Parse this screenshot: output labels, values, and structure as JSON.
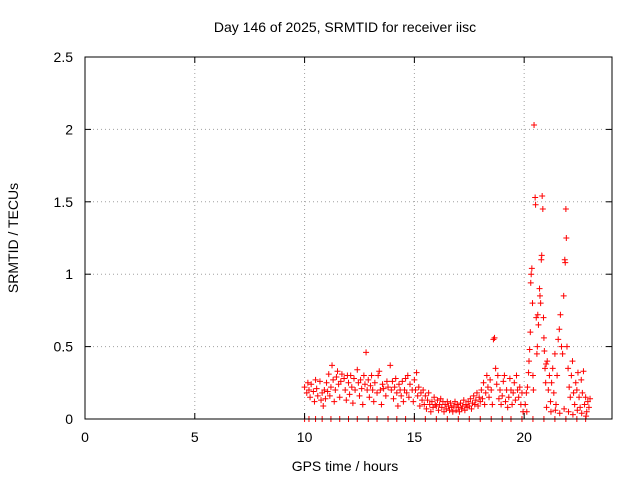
{
  "chart_data": {
    "type": "scatter",
    "title": "Day 146 of 2025, SRMTID for receiver iisc",
    "xlabel": "GPS time / hours",
    "ylabel": "SRMTID / TECUs",
    "xlim": [
      0,
      24
    ],
    "ylim": [
      0,
      2.5
    ],
    "x_ticks": [
      0,
      5,
      10,
      15,
      20
    ],
    "x_tick_labels": [
      "0",
      "5",
      "10",
      "15",
      "20"
    ],
    "y_ticks": [
      0,
      0.5,
      1,
      1.5,
      2,
      2.5
    ],
    "y_tick_labels": [
      "0",
      "0.5",
      "1",
      "1.5",
      "2",
      "2.5"
    ],
    "grid": true,
    "marker": "+",
    "colors": {
      "points": "#ff0000",
      "grid": "#a0a0a0",
      "axes": "#000000"
    },
    "series": [
      {
        "name": "SRMTID",
        "points": [
          [
            10.0,
            0.0
          ],
          [
            10.2,
            0.0
          ],
          [
            10.5,
            0.0
          ],
          [
            10.8,
            0.0
          ],
          [
            11.2,
            0.0
          ],
          [
            11.6,
            0.0
          ],
          [
            12.0,
            0.0
          ],
          [
            12.4,
            0.0
          ],
          [
            12.9,
            0.0
          ],
          [
            13.3,
            0.0
          ],
          [
            13.8,
            0.0
          ],
          [
            14.2,
            0.0
          ],
          [
            14.6,
            0.0
          ],
          [
            15.0,
            0.0
          ],
          [
            15.5,
            0.0
          ],
          [
            16.0,
            0.0
          ],
          [
            16.5,
            0.0
          ],
          [
            17.0,
            0.0
          ],
          [
            17.5,
            0.0
          ],
          [
            18.0,
            0.0
          ],
          [
            18.5,
            0.0
          ],
          [
            19.0,
            0.0
          ],
          [
            19.4,
            0.0
          ],
          [
            19.9,
            0.0
          ],
          [
            20.4,
            0.0
          ],
          [
            20.9,
            0.0
          ],
          [
            21.4,
            0.0
          ],
          [
            21.9,
            0.0
          ],
          [
            22.4,
            0.0
          ],
          [
            22.8,
            0.0
          ],
          [
            10.0,
            0.22
          ],
          [
            10.1,
            0.18
          ],
          [
            10.15,
            0.25
          ],
          [
            10.2,
            0.2
          ],
          [
            10.25,
            0.15
          ],
          [
            10.3,
            0.24
          ],
          [
            10.4,
            0.19
          ],
          [
            10.45,
            0.12
          ],
          [
            10.5,
            0.27
          ],
          [
            10.55,
            0.21
          ],
          [
            10.6,
            0.16
          ],
          [
            10.7,
            0.26
          ],
          [
            10.75,
            0.13
          ],
          [
            10.8,
            0.18
          ],
          [
            10.85,
            0.09
          ],
          [
            10.9,
            0.2
          ],
          [
            10.95,
            0.14
          ],
          [
            11.0,
            0.25
          ],
          [
            11.05,
            0.19
          ],
          [
            11.1,
            0.31
          ],
          [
            11.15,
            0.16
          ],
          [
            11.2,
            0.22
          ],
          [
            11.25,
            0.37
          ],
          [
            11.3,
            0.27
          ],
          [
            11.35,
            0.12
          ],
          [
            11.4,
            0.2
          ],
          [
            11.45,
            0.29
          ],
          [
            11.5,
            0.33
          ],
          [
            11.55,
            0.24
          ],
          [
            11.6,
            0.15
          ],
          [
            11.65,
            0.26
          ],
          [
            11.7,
            0.31
          ],
          [
            11.8,
            0.28
          ],
          [
            11.85,
            0.2
          ],
          [
            11.9,
            0.13
          ],
          [
            11.95,
            0.3
          ],
          [
            12.0,
            0.25
          ],
          [
            12.05,
            0.17
          ],
          [
            12.1,
            0.3
          ],
          [
            12.15,
            0.22
          ],
          [
            12.2,
            0.11
          ],
          [
            12.25,
            0.28
          ],
          [
            12.3,
            0.2
          ],
          [
            12.4,
            0.34
          ],
          [
            12.45,
            0.25
          ],
          [
            12.5,
            0.16
          ],
          [
            12.55,
            0.27
          ],
          [
            12.6,
            0.21
          ],
          [
            12.65,
            0.1
          ],
          [
            12.7,
            0.3
          ],
          [
            12.75,
            0.24
          ],
          [
            12.8,
            0.46
          ],
          [
            12.85,
            0.2
          ],
          [
            12.9,
            0.27
          ],
          [
            12.95,
            0.15
          ],
          [
            13.0,
            0.23
          ],
          [
            13.05,
            0.3
          ],
          [
            13.1,
            0.2
          ],
          [
            13.15,
            0.12
          ],
          [
            13.2,
            0.25
          ],
          [
            13.3,
            0.18
          ],
          [
            13.35,
            0.3
          ],
          [
            13.4,
            0.33
          ],
          [
            13.45,
            0.2
          ],
          [
            13.5,
            0.1
          ],
          [
            13.55,
            0.24
          ],
          [
            13.6,
            0.21
          ],
          [
            13.7,
            0.16
          ],
          [
            13.75,
            0.26
          ],
          [
            13.8,
            0.22
          ],
          [
            13.9,
            0.37
          ],
          [
            13.95,
            0.2
          ],
          [
            14.0,
            0.26
          ],
          [
            14.05,
            0.14
          ],
          [
            14.1,
            0.22
          ],
          [
            14.15,
            0.28
          ],
          [
            14.2,
            0.18
          ],
          [
            14.25,
            0.09
          ],
          [
            14.3,
            0.24
          ],
          [
            14.35,
            0.2
          ],
          [
            14.4,
            0.16
          ],
          [
            14.45,
            0.26
          ],
          [
            14.5,
            0.12
          ],
          [
            14.55,
            0.2
          ],
          [
            14.6,
            0.28
          ],
          [
            14.65,
            0.18
          ],
          [
            14.7,
            0.3
          ],
          [
            14.75,
            0.15
          ],
          [
            14.8,
            0.24
          ],
          [
            14.9,
            0.2
          ],
          [
            14.95,
            0.12
          ],
          [
            15.0,
            0.27
          ],
          [
            15.05,
            0.2
          ],
          [
            15.1,
            0.32
          ],
          [
            15.15,
            0.16
          ],
          [
            15.2,
            0.22
          ],
          [
            15.25,
            0.09
          ],
          [
            15.3,
            0.18
          ],
          [
            15.35,
            0.13
          ],
          [
            15.4,
            0.2
          ],
          [
            15.45,
            0.1
          ],
          [
            15.5,
            0.16
          ],
          [
            15.55,
            0.07
          ],
          [
            15.6,
            0.13
          ],
          [
            15.65,
            0.18
          ],
          [
            15.7,
            0.1
          ],
          [
            15.75,
            0.05
          ],
          [
            15.8,
            0.12
          ],
          [
            15.85,
            0.08
          ],
          [
            15.9,
            0.15
          ],
          [
            15.95,
            0.1
          ],
          [
            16.0,
            0.09
          ],
          [
            16.05,
            0.13
          ],
          [
            16.1,
            0.06
          ],
          [
            16.15,
            0.1
          ],
          [
            16.2,
            0.14
          ],
          [
            16.25,
            0.08
          ],
          [
            16.3,
            0.12
          ],
          [
            16.35,
            0.05
          ],
          [
            16.4,
            0.1
          ],
          [
            16.45,
            0.07
          ],
          [
            16.5,
            0.12
          ],
          [
            16.55,
            0.09
          ],
          [
            16.6,
            0.06
          ],
          [
            16.65,
            0.11
          ],
          [
            16.7,
            0.08
          ],
          [
            16.75,
            0.05
          ],
          [
            16.8,
            0.09
          ],
          [
            16.85,
            0.12
          ],
          [
            16.9,
            0.06
          ],
          [
            16.95,
            0.1
          ],
          [
            17.0,
            0.08
          ],
          [
            17.05,
            0.05
          ],
          [
            17.1,
            0.11
          ],
          [
            17.15,
            0.07
          ],
          [
            17.2,
            0.09
          ],
          [
            17.25,
            0.13
          ],
          [
            17.3,
            0.06
          ],
          [
            17.35,
            0.1
          ],
          [
            17.4,
            0.08
          ],
          [
            17.45,
            0.12
          ],
          [
            17.5,
            0.09
          ],
          [
            17.55,
            0.14
          ],
          [
            17.6,
            0.07
          ],
          [
            17.65,
            0.11
          ],
          [
            17.7,
            0.16
          ],
          [
            17.75,
            0.1
          ],
          [
            17.8,
            0.13
          ],
          [
            17.85,
            0.18
          ],
          [
            17.9,
            0.09
          ],
          [
            17.95,
            0.15
          ],
          [
            18.0,
            0.12
          ],
          [
            18.05,
            0.2
          ],
          [
            18.1,
            0.14
          ],
          [
            18.15,
            0.25
          ],
          [
            18.2,
            0.1
          ],
          [
            18.25,
            0.18
          ],
          [
            18.3,
            0.3
          ],
          [
            18.35,
            0.22
          ],
          [
            18.4,
            0.15
          ],
          [
            18.45,
            0.27
          ],
          [
            18.5,
            0.2
          ],
          [
            18.55,
            0.1
          ],
          [
            18.6,
            0.55
          ],
          [
            18.65,
            0.56
          ],
          [
            18.7,
            0.35
          ],
          [
            18.75,
            0.24
          ],
          [
            18.8,
            0.3
          ],
          [
            18.85,
            0.14
          ],
          [
            18.9,
            0.2
          ],
          [
            18.95,
            0.1
          ],
          [
            19.0,
            0.16
          ],
          [
            19.05,
            0.26
          ],
          [
            19.1,
            0.3
          ],
          [
            19.15,
            0.12
          ],
          [
            19.2,
            0.2
          ],
          [
            19.25,
            0.08
          ],
          [
            19.3,
            0.15
          ],
          [
            19.35,
            0.28
          ],
          [
            19.4,
            0.2
          ],
          [
            19.45,
            0.1
          ],
          [
            19.5,
            0.18
          ],
          [
            19.55,
            0.25
          ],
          [
            19.6,
            0.13
          ],
          [
            19.65,
            0.3
          ],
          [
            19.7,
            0.2
          ],
          [
            19.75,
            0.15
          ],
          [
            19.8,
            0.22
          ],
          [
            19.85,
            0.1
          ],
          [
            19.9,
            0.18
          ],
          [
            19.95,
            0.05
          ],
          [
            20.2,
            0.32
          ],
          [
            20.22,
            0.4
          ],
          [
            20.25,
            0.48
          ],
          [
            20.28,
            0.6
          ],
          [
            20.3,
            0.94
          ],
          [
            20.32,
            1.0
          ],
          [
            20.35,
            1.04
          ],
          [
            20.38,
            0.8
          ],
          [
            20.4,
            0.3
          ],
          [
            20.42,
            0.2
          ],
          [
            20.45,
            2.03
          ],
          [
            20.5,
            1.53
          ],
          [
            20.52,
            1.48
          ],
          [
            20.55,
            0.7
          ],
          [
            20.58,
            0.45
          ],
          [
            20.6,
            0.5
          ],
          [
            20.62,
            0.72
          ],
          [
            20.65,
            0.65
          ],
          [
            20.7,
            0.9
          ],
          [
            20.72,
            0.85
          ],
          [
            20.75,
            0.8
          ],
          [
            20.78,
            1.1
          ],
          [
            20.8,
            1.13
          ],
          [
            20.82,
            1.54
          ],
          [
            20.85,
            1.45
          ],
          [
            20.88,
            0.7
          ],
          [
            20.9,
            0.56
          ],
          [
            20.92,
            0.47
          ],
          [
            20.95,
            0.35
          ],
          [
            20.98,
            0.25
          ],
          [
            21.0,
            0.38
          ],
          [
            21.05,
            0.4
          ],
          [
            21.1,
            0.2
          ],
          [
            21.15,
            0.3
          ],
          [
            21.2,
            0.12
          ],
          [
            21.25,
            0.25
          ],
          [
            21.3,
            0.35
          ],
          [
            21.35,
            0.18
          ],
          [
            21.4,
            0.45
          ],
          [
            21.45,
            0.1
          ],
          [
            21.5,
            0.3
          ],
          [
            21.55,
            0.55
          ],
          [
            21.6,
            0.62
          ],
          [
            21.65,
            0.72
          ],
          [
            21.7,
            0.5
          ],
          [
            21.75,
            0.45
          ],
          [
            21.8,
            0.85
          ],
          [
            21.85,
            1.1
          ],
          [
            21.87,
            1.08
          ],
          [
            21.9,
            1.45
          ],
          [
            21.92,
            1.25
          ],
          [
            21.95,
            0.5
          ],
          [
            22.0,
            0.35
          ],
          [
            22.05,
            0.22
          ],
          [
            22.1,
            0.15
          ],
          [
            22.15,
            0.3
          ],
          [
            22.2,
            0.4
          ],
          [
            22.25,
            0.18
          ],
          [
            22.3,
            0.1
          ],
          [
            22.35,
            0.25
          ],
          [
            22.4,
            0.2
          ],
          [
            22.45,
            0.32
          ],
          [
            22.5,
            0.15
          ],
          [
            22.55,
            0.08
          ],
          [
            22.6,
            0.27
          ],
          [
            22.65,
            0.18
          ],
          [
            22.7,
            0.33
          ],
          [
            22.75,
            0.1
          ],
          [
            22.8,
            0.15
          ],
          [
            22.85,
            0.05
          ],
          [
            22.9,
            0.12
          ],
          [
            22.95,
            0.08
          ],
          [
            23.0,
            0.14
          ],
          [
            20.05,
            0.1
          ],
          [
            20.1,
            0.18
          ],
          [
            20.12,
            0.05
          ],
          [
            20.15,
            0.22
          ],
          [
            21.02,
            0.08
          ],
          [
            21.22,
            0.05
          ],
          [
            21.42,
            0.06
          ],
          [
            21.62,
            0.04
          ],
          [
            21.82,
            0.07
          ],
          [
            22.02,
            0.05
          ],
          [
            22.22,
            0.03
          ],
          [
            22.42,
            0.06
          ],
          [
            22.62,
            0.04
          ],
          [
            22.82,
            0.02
          ]
        ]
      }
    ]
  }
}
